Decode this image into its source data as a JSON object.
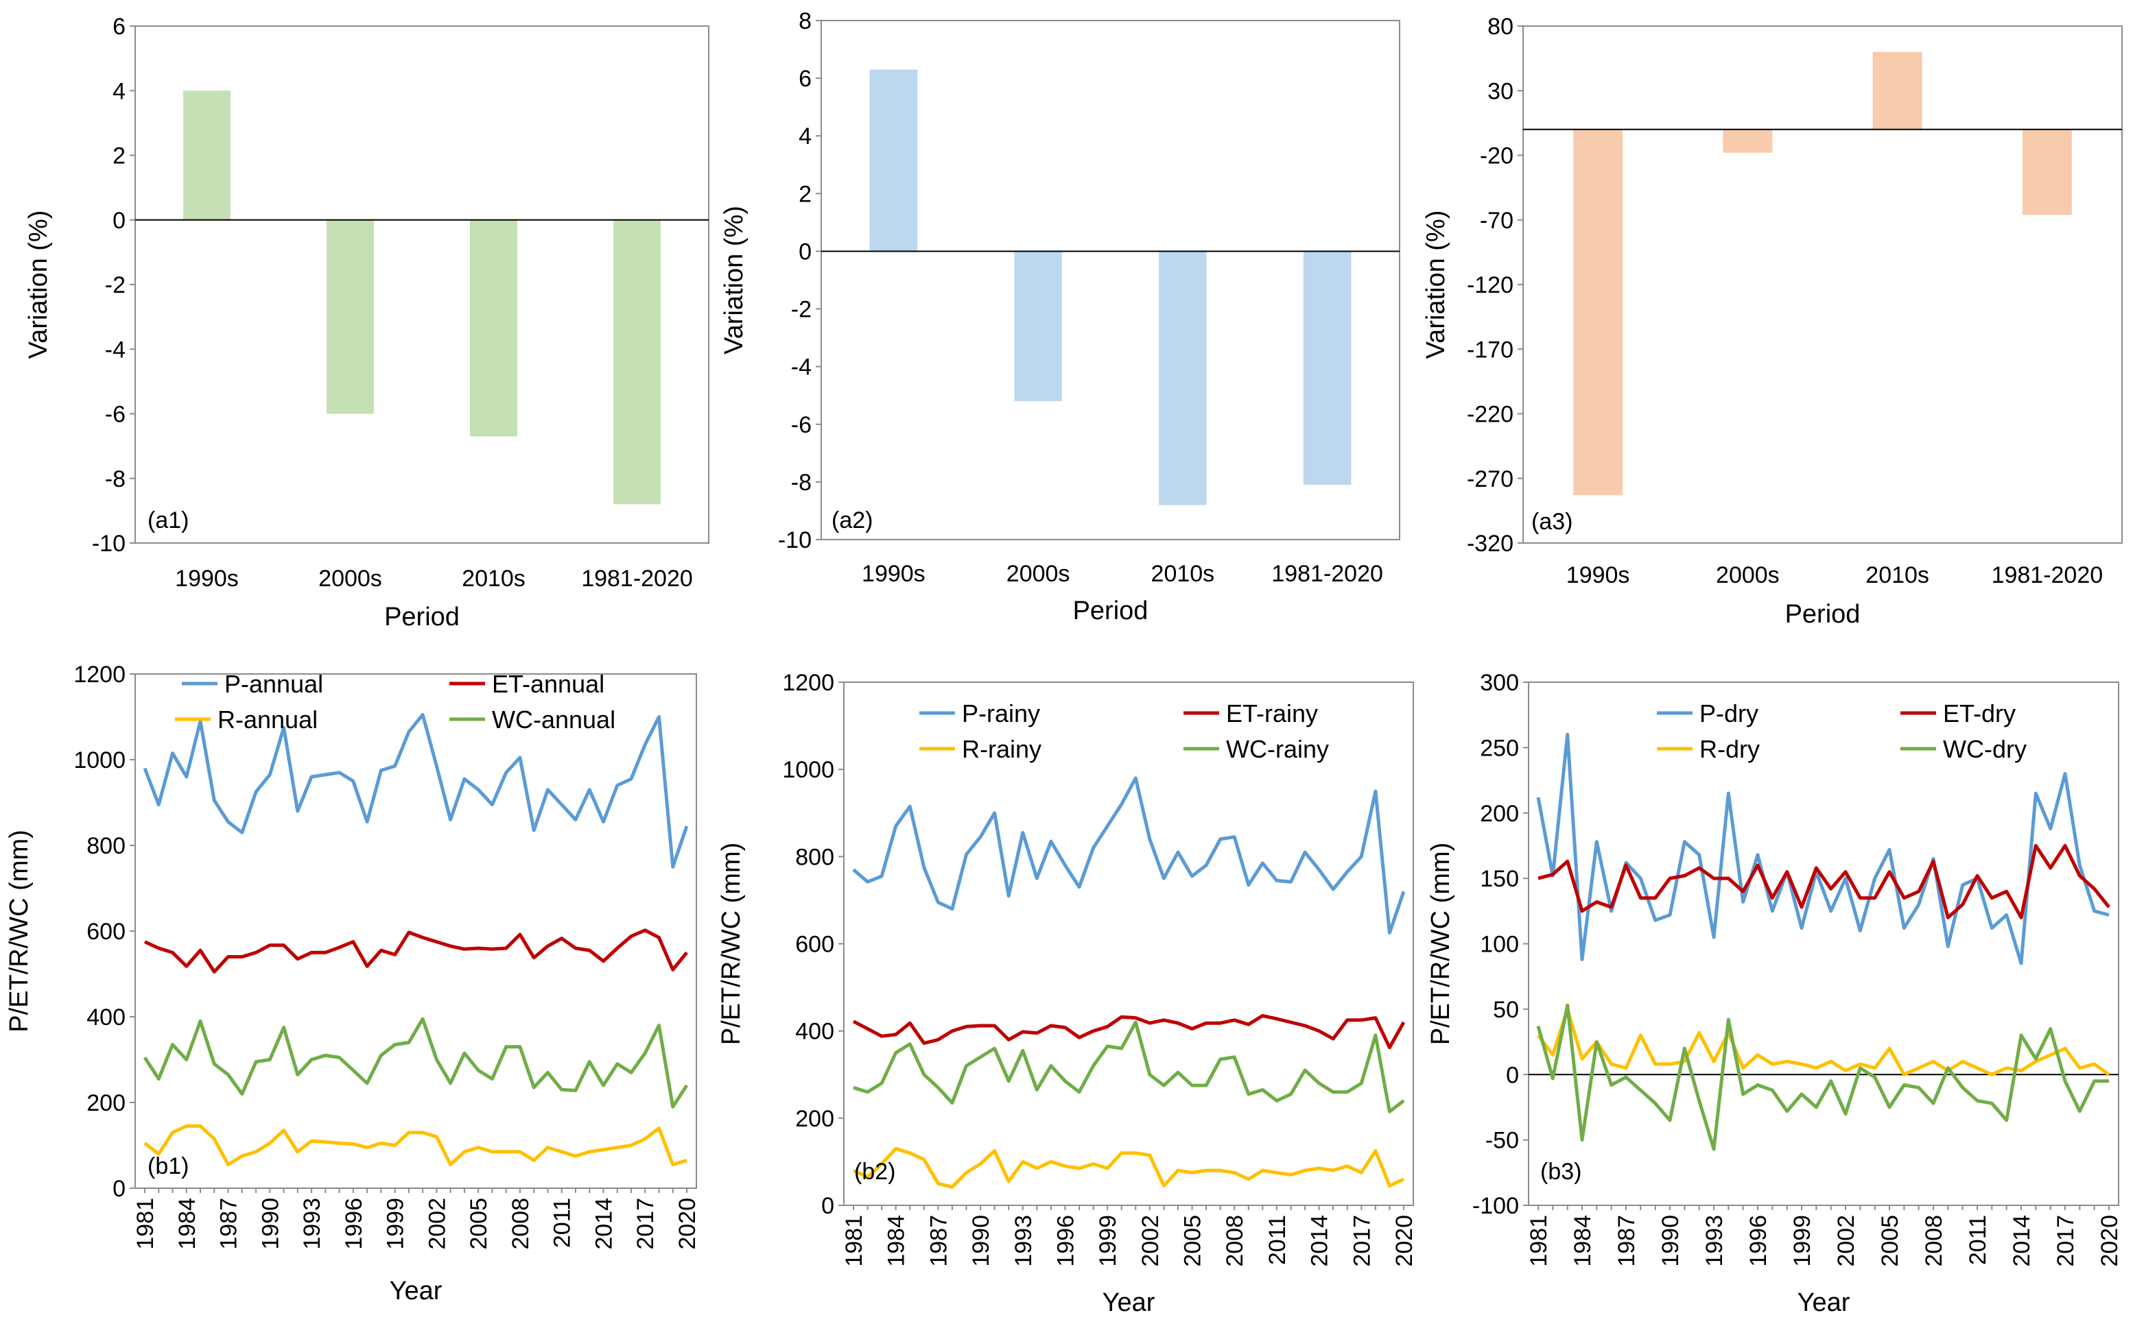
{
  "chart_data": [
    {
      "id": "a1",
      "type": "bar",
      "panel_label": "(a1)",
      "categories": [
        "1990s",
        "2000s",
        "2010s",
        "1981-2020"
      ],
      "values": [
        4.0,
        -6.0,
        -6.7,
        -8.8
      ],
      "xlabel": "Period",
      "ylabel": "Variation (%)",
      "ylim": [
        -10,
        6
      ],
      "yticks": [
        6,
        4,
        2,
        0,
        -2,
        -4,
        -6,
        -8,
        -10
      ],
      "bar_color": "#c5e0b4",
      "grid": false,
      "legend": "none"
    },
    {
      "id": "a2",
      "type": "bar",
      "panel_label": "(a2)",
      "categories": [
        "1990s",
        "2000s",
        "2010s",
        "1981-2020"
      ],
      "values": [
        6.3,
        -5.2,
        -8.8,
        -8.1
      ],
      "xlabel": "Period",
      "ylabel": "Variation (%)",
      "ylim": [
        -10,
        8
      ],
      "yticks": [
        8,
        6,
        4,
        2,
        0,
        -2,
        -4,
        -6,
        -8,
        -10
      ],
      "bar_color": "#bdd7ee",
      "grid": false,
      "legend": "none"
    },
    {
      "id": "a3",
      "type": "bar",
      "panel_label": "(a3)",
      "categories": [
        "1990s",
        "2000s",
        "2010s",
        "1981-2020"
      ],
      "values": [
        -283,
        -18,
        60,
        -66
      ],
      "xlabel": "Period",
      "ylabel": "Variation (%)",
      "ylim": [
        -320,
        80
      ],
      "yticks": [
        80,
        30,
        -20,
        -70,
        -120,
        -170,
        -220,
        -270,
        -320
      ],
      "bar_color": "#f8cbad",
      "grid": false,
      "legend": "none"
    },
    {
      "id": "b1",
      "type": "line",
      "panel_label": "(b1)",
      "x": [
        1981,
        1982,
        1983,
        1984,
        1985,
        1986,
        1987,
        1988,
        1989,
        1990,
        1991,
        1992,
        1993,
        1994,
        1995,
        1996,
        1997,
        1998,
        1999,
        2000,
        2001,
        2002,
        2003,
        2004,
        2005,
        2006,
        2007,
        2008,
        2009,
        2010,
        2011,
        2012,
        2013,
        2014,
        2015,
        2016,
        2017,
        2018,
        2019,
        2020
      ],
      "xticks": [
        "1981",
        "1984",
        "1987",
        "1990",
        "1993",
        "1996",
        "1999",
        "2002",
        "2005",
        "2008",
        "2011",
        "2014",
        "2017",
        "2020"
      ],
      "xlabel": "Year",
      "ylabel": "P/ET/R/WC (mm)",
      "ylim": [
        0,
        1200
      ],
      "yticks": [
        1200,
        1000,
        800,
        600,
        400,
        200,
        0
      ],
      "grid": false,
      "legend": "top",
      "series": [
        {
          "name": "P-annual",
          "color": "#5b9bd5",
          "values": [
            980,
            895,
            1015,
            960,
            1090,
            905,
            855,
            830,
            925,
            965,
            1075,
            880,
            960,
            965,
            970,
            950,
            855,
            975,
            985,
            1065,
            1105,
            985,
            860,
            955,
            930,
            895,
            970,
            1005,
            835,
            930,
            895,
            860,
            930,
            855,
            940,
            955,
            1035,
            1100,
            750,
            845
          ]
        },
        {
          "name": "ET-annual",
          "color": "#c00000",
          "values": [
            575,
            560,
            550,
            518,
            555,
            505,
            540,
            540,
            550,
            567,
            567,
            535,
            550,
            550,
            562,
            575,
            518,
            555,
            545,
            597,
            585,
            575,
            565,
            558,
            560,
            558,
            560,
            592,
            538,
            565,
            583,
            560,
            555,
            530,
            560,
            588,
            602,
            585,
            510,
            550
          ]
        },
        {
          "name": "R-annual",
          "color": "#ffc000",
          "values": [
            105,
            80,
            130,
            145,
            145,
            115,
            55,
            75,
            85,
            105,
            135,
            85,
            110,
            108,
            105,
            103,
            95,
            105,
            100,
            130,
            130,
            120,
            55,
            85,
            95,
            85,
            85,
            85,
            65,
            95,
            85,
            75,
            85,
            90,
            95,
            100,
            115,
            140,
            55,
            65
          ]
        },
        {
          "name": "WC-annual",
          "color": "#70ad47",
          "values": [
            305,
            255,
            335,
            300,
            390,
            290,
            265,
            220,
            295,
            300,
            375,
            265,
            300,
            310,
            305,
            275,
            245,
            310,
            335,
            340,
            395,
            300,
            245,
            315,
            275,
            255,
            330,
            330,
            235,
            270,
            230,
            228,
            295,
            240,
            290,
            270,
            315,
            380,
            190,
            240
          ]
        }
      ]
    },
    {
      "id": "b2",
      "type": "line",
      "panel_label": "(b2)",
      "x": [
        1981,
        1982,
        1983,
        1984,
        1985,
        1986,
        1987,
        1988,
        1989,
        1990,
        1991,
        1992,
        1993,
        1994,
        1995,
        1996,
        1997,
        1998,
        1999,
        2000,
        2001,
        2002,
        2003,
        2004,
        2005,
        2006,
        2007,
        2008,
        2009,
        2010,
        2011,
        2012,
        2013,
        2014,
        2015,
        2016,
        2017,
        2018,
        2019,
        2020
      ],
      "xticks": [
        "1981",
        "1984",
        "1987",
        "1990",
        "1993",
        "1996",
        "1999",
        "2002",
        "2005",
        "2008",
        "2011",
        "2014",
        "2017",
        "2020"
      ],
      "xlabel": "Year",
      "ylabel": "P/ET/R/WC (mm)",
      "ylim": [
        0,
        1200
      ],
      "yticks": [
        1200,
        1000,
        800,
        600,
        400,
        200,
        0
      ],
      "grid": false,
      "legend": "top",
      "series": [
        {
          "name": "P-rainy",
          "color": "#5b9bd5",
          "values": [
            770,
            742,
            755,
            870,
            915,
            775,
            695,
            680,
            805,
            845,
            900,
            710,
            855,
            750,
            835,
            780,
            730,
            820,
            870,
            920,
            980,
            840,
            750,
            810,
            755,
            780,
            840,
            845,
            735,
            785,
            745,
            742,
            810,
            770,
            725,
            765,
            800,
            950,
            625,
            720
          ]
        },
        {
          "name": "ET-rainy",
          "color": "#c00000",
          "values": [
            422,
            405,
            388,
            392,
            418,
            372,
            380,
            400,
            410,
            412,
            412,
            380,
            398,
            395,
            412,
            408,
            385,
            400,
            410,
            432,
            430,
            418,
            425,
            418,
            405,
            418,
            418,
            425,
            415,
            435,
            428,
            420,
            412,
            400,
            382,
            425,
            425,
            430,
            362,
            420
          ]
        },
        {
          "name": "R-rainy",
          "color": "#ffc000",
          "values": [
            80,
            65,
            95,
            130,
            120,
            105,
            50,
            42,
            75,
            95,
            125,
            55,
            100,
            85,
            100,
            90,
            85,
            95,
            85,
            120,
            120,
            115,
            45,
            80,
            75,
            80,
            80,
            75,
            60,
            80,
            75,
            70,
            80,
            85,
            80,
            90,
            75,
            125,
            45,
            60
          ]
        },
        {
          "name": "WC-rainy",
          "color": "#70ad47",
          "values": [
            270,
            260,
            280,
            350,
            370,
            300,
            270,
            235,
            320,
            340,
            360,
            285,
            355,
            265,
            320,
            285,
            260,
            320,
            365,
            360,
            420,
            300,
            275,
            305,
            275,
            275,
            335,
            340,
            255,
            265,
            240,
            255,
            310,
            280,
            260,
            260,
            280,
            390,
            215,
            240
          ]
        }
      ]
    },
    {
      "id": "b3",
      "type": "line",
      "panel_label": "(b3)",
      "x": [
        1981,
        1982,
        1983,
        1984,
        1985,
        1986,
        1987,
        1988,
        1989,
        1990,
        1991,
        1992,
        1993,
        1994,
        1995,
        1996,
        1997,
        1998,
        1999,
        2000,
        2001,
        2002,
        2003,
        2004,
        2005,
        2006,
        2007,
        2008,
        2009,
        2010,
        2011,
        2012,
        2013,
        2014,
        2015,
        2016,
        2017,
        2018,
        2019,
        2020
      ],
      "xticks": [
        "1981",
        "1984",
        "1987",
        "1990",
        "1993",
        "1996",
        "1999",
        "2002",
        "2005",
        "2008",
        "2011",
        "2014",
        "2017",
        "2020"
      ],
      "xlabel": "Year",
      "ylabel": "P/ET/R/WC (mm)",
      "ylim": [
        -100,
        300
      ],
      "yticks": [
        300,
        250,
        200,
        150,
        100,
        50,
        0,
        -50,
        -100
      ],
      "grid": false,
      "legend": "top",
      "series": [
        {
          "name": "P-dry",
          "color": "#5b9bd5",
          "values": [
            212,
            152,
            260,
            88,
            178,
            125,
            162,
            150,
            118,
            122,
            178,
            168,
            105,
            215,
            132,
            168,
            125,
            155,
            112,
            155,
            125,
            150,
            110,
            150,
            172,
            112,
            130,
            165,
            98,
            145,
            150,
            112,
            122,
            85,
            215,
            188,
            230,
            160,
            125,
            122
          ]
        },
        {
          "name": "ET-dry",
          "color": "#c00000",
          "values": [
            150,
            153,
            163,
            125,
            132,
            128,
            160,
            135,
            135,
            150,
            152,
            158,
            150,
            150,
            140,
            160,
            135,
            155,
            128,
            158,
            142,
            155,
            135,
            135,
            155,
            135,
            140,
            163,
            120,
            130,
            152,
            135,
            140,
            120,
            175,
            158,
            175,
            152,
            142,
            128
          ]
        },
        {
          "name": "R-dry",
          "color": "#ffc000",
          "values": [
            30,
            15,
            50,
            12,
            25,
            8,
            5,
            30,
            8,
            8,
            10,
            32,
            10,
            32,
            5,
            15,
            8,
            10,
            8,
            5,
            10,
            3,
            8,
            5,
            20,
            0,
            5,
            10,
            3,
            10,
            5,
            0,
            5,
            3,
            10,
            15,
            20,
            5,
            8,
            0
          ]
        },
        {
          "name": "WC-dry",
          "color": "#70ad47",
          "values": [
            37,
            -3,
            53,
            -50,
            25,
            -8,
            -2,
            -12,
            -22,
            -35,
            20,
            -20,
            -57,
            42,
            -15,
            -8,
            -12,
            -28,
            -15,
            -25,
            -5,
            -30,
            5,
            -2,
            -25,
            -8,
            -10,
            -22,
            5,
            -10,
            -20,
            -22,
            -35,
            30,
            12,
            35,
            -5,
            -28,
            -5,
            -5
          ]
        }
      ]
    }
  ]
}
